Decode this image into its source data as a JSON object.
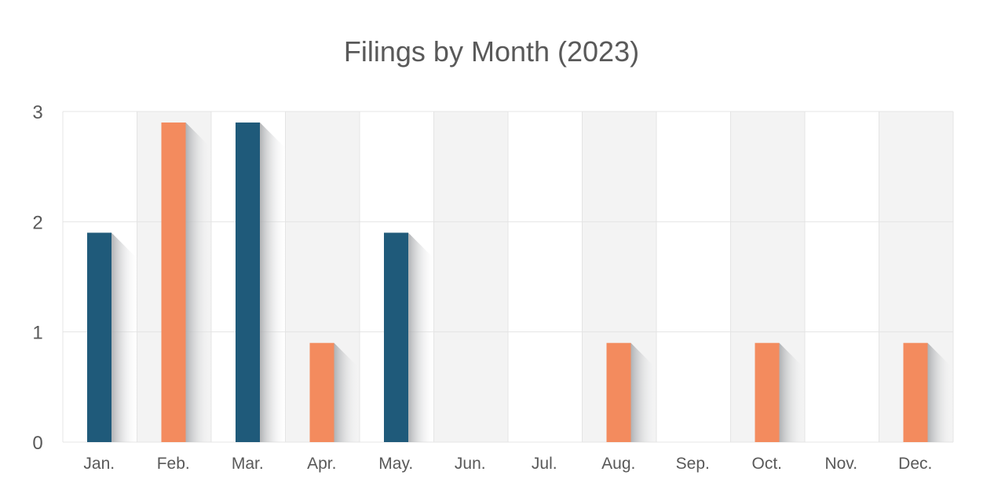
{
  "chart_data": {
    "type": "bar",
    "title": "Filings by Month (2023)",
    "xlabel": "",
    "ylabel": "",
    "categories": [
      "Jan.",
      "Feb.",
      "Mar.",
      "Apr.",
      "May.",
      "Jun.",
      "Jul.",
      "Aug.",
      "Sep.",
      "Oct.",
      "Nov.",
      "Dec."
    ],
    "values": [
      1.9,
      2.9,
      2.9,
      0.9,
      1.9,
      0,
      0,
      0.9,
      0,
      0.9,
      0,
      0.9
    ],
    "ylim": [
      0,
      3
    ],
    "yticks": [
      "0",
      "1",
      "2",
      "3"
    ],
    "grid": true,
    "legend": "none",
    "colors": {
      "navy": "#1f5a7a",
      "orange": "#f38b5e",
      "band": "#f3f3f3",
      "gridline": "#e4e4e4",
      "text": "#595959"
    },
    "bar_colors": [
      "navy",
      "orange",
      "navy",
      "orange",
      "navy",
      "orange",
      "navy",
      "orange",
      "navy",
      "orange",
      "navy",
      "orange"
    ]
  }
}
